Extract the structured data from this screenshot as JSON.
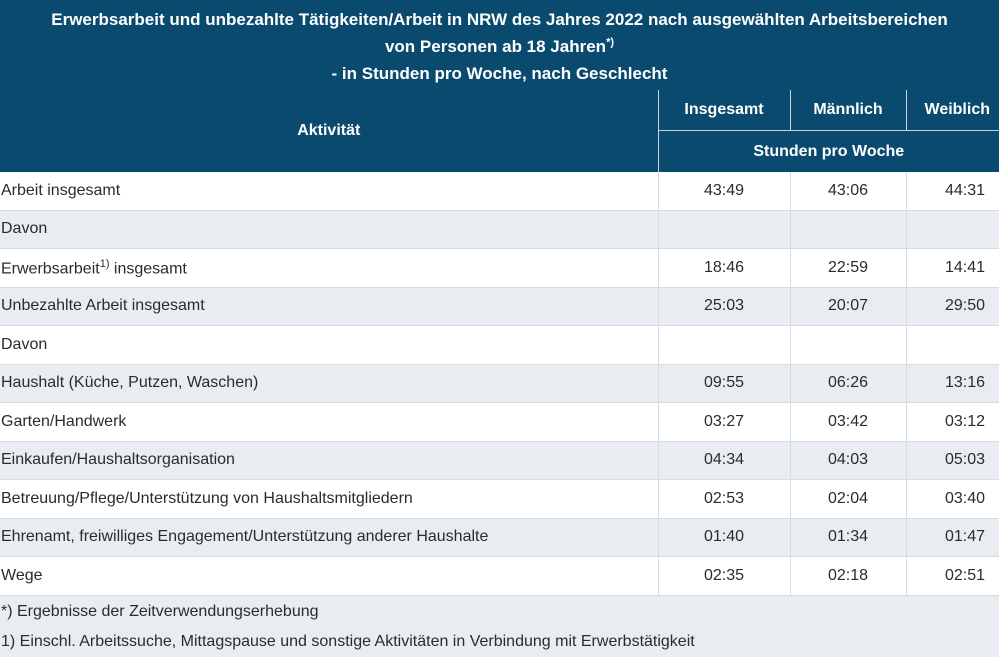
{
  "title": {
    "line1": "Erwerbsarbeit und unbezahlte Tätigkeiten/Arbeit in NRW des Jahres 2022 nach ausgewählten Arbeitsbereichen",
    "line2": "von Personen ab 18 Jahren",
    "line2_sup": "*)",
    "line3": "- in Stunden pro Woche, nach Geschlecht"
  },
  "header": {
    "activity": "Aktivität",
    "total": "Insgesamt",
    "male": "Männlich",
    "female": "Weiblich",
    "unit": "Stunden pro Woche"
  },
  "rows": [
    {
      "label": "Arbeit insgesamt",
      "total": "43:49",
      "male": "43:06",
      "female": "44:31"
    },
    {
      "label": "Davon",
      "total": "",
      "male": "",
      "female": ""
    },
    {
      "label": "Erwerbsarbeit",
      "sup": "1)",
      "label_rest": " insgesamt",
      "total": "18:46",
      "male": "22:59",
      "female": "14:41"
    },
    {
      "label": "Unbezahlte Arbeit insgesamt",
      "total": "25:03",
      "male": "20:07",
      "female": "29:50"
    },
    {
      "label": "Davon",
      "total": "",
      "male": "",
      "female": ""
    },
    {
      "label": "Haushalt (Küche, Putzen, Waschen)",
      "total": "09:55",
      "male": "06:26",
      "female": "13:16"
    },
    {
      "label": "Garten/Handwerk",
      "total": "03:27",
      "male": "03:42",
      "female": "03:12"
    },
    {
      "label": "Einkaufen/Haushaltsorganisation",
      "total": "04:34",
      "male": "04:03",
      "female": "05:03"
    },
    {
      "label": "Betreuung/Pflege/Unterstützung von Haushaltsmitgliedern",
      "total": "02:53",
      "male": "02:04",
      "female": "03:40"
    },
    {
      "label": "Ehrenamt, freiwilliges Engagement/Unterstützung anderer Haushalte",
      "total": "01:40",
      "male": "01:34",
      "female": "01:47"
    },
    {
      "label": "Wege",
      "total": "02:35",
      "male": "02:18",
      "female": "02:51"
    }
  ],
  "footnotes": [
    "*) Ergebnisse der Zeitverwendungserhebung",
    "1) Einschl. Arbeitssuche, Mittagspause und sonstige Aktivitäten in Verbindung mit Erwerbstätigkeit"
  ],
  "colors": {
    "header_bg": "#0b4a6f",
    "row_white": "#ffffff",
    "row_grey": "#e9edf1"
  }
}
